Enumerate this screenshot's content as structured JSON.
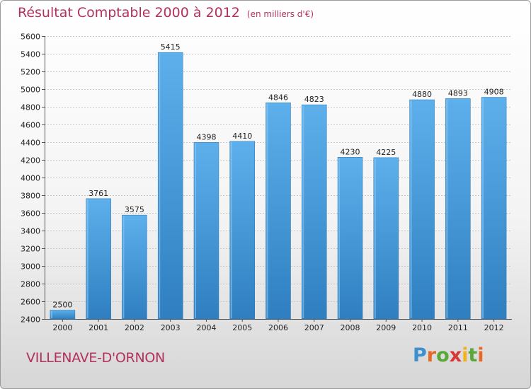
{
  "chart_data": {
    "type": "bar",
    "title": "Résultat Comptable 2000 à 2012",
    "subtitle": "(en milliers d'€)",
    "categories": [
      "2000",
      "2001",
      "2002",
      "2003",
      "2004",
      "2005",
      "2006",
      "2007",
      "2008",
      "2009",
      "2010",
      "2011",
      "2012"
    ],
    "values": [
      2500,
      3761,
      3575,
      5415,
      4398,
      4410,
      4846,
      4823,
      4230,
      4225,
      4880,
      4893,
      4908
    ],
    "ylim": [
      2400,
      5600
    ],
    "yticks": [
      2400,
      2600,
      2800,
      3000,
      3200,
      3400,
      3600,
      3800,
      4000,
      4200,
      4400,
      4600,
      4800,
      5000,
      5200,
      5400,
      5600
    ],
    "xlabel": "",
    "ylabel": "",
    "grid": true,
    "bar_color": "#4a9bd8"
  },
  "location": "VILLENAVE-D'ORNON",
  "brand": {
    "letters": [
      "P",
      "r",
      "o",
      "x",
      "i",
      "t",
      "i"
    ]
  },
  "colors": {
    "title": "#b3315d",
    "bar": "#4a9bd8"
  }
}
